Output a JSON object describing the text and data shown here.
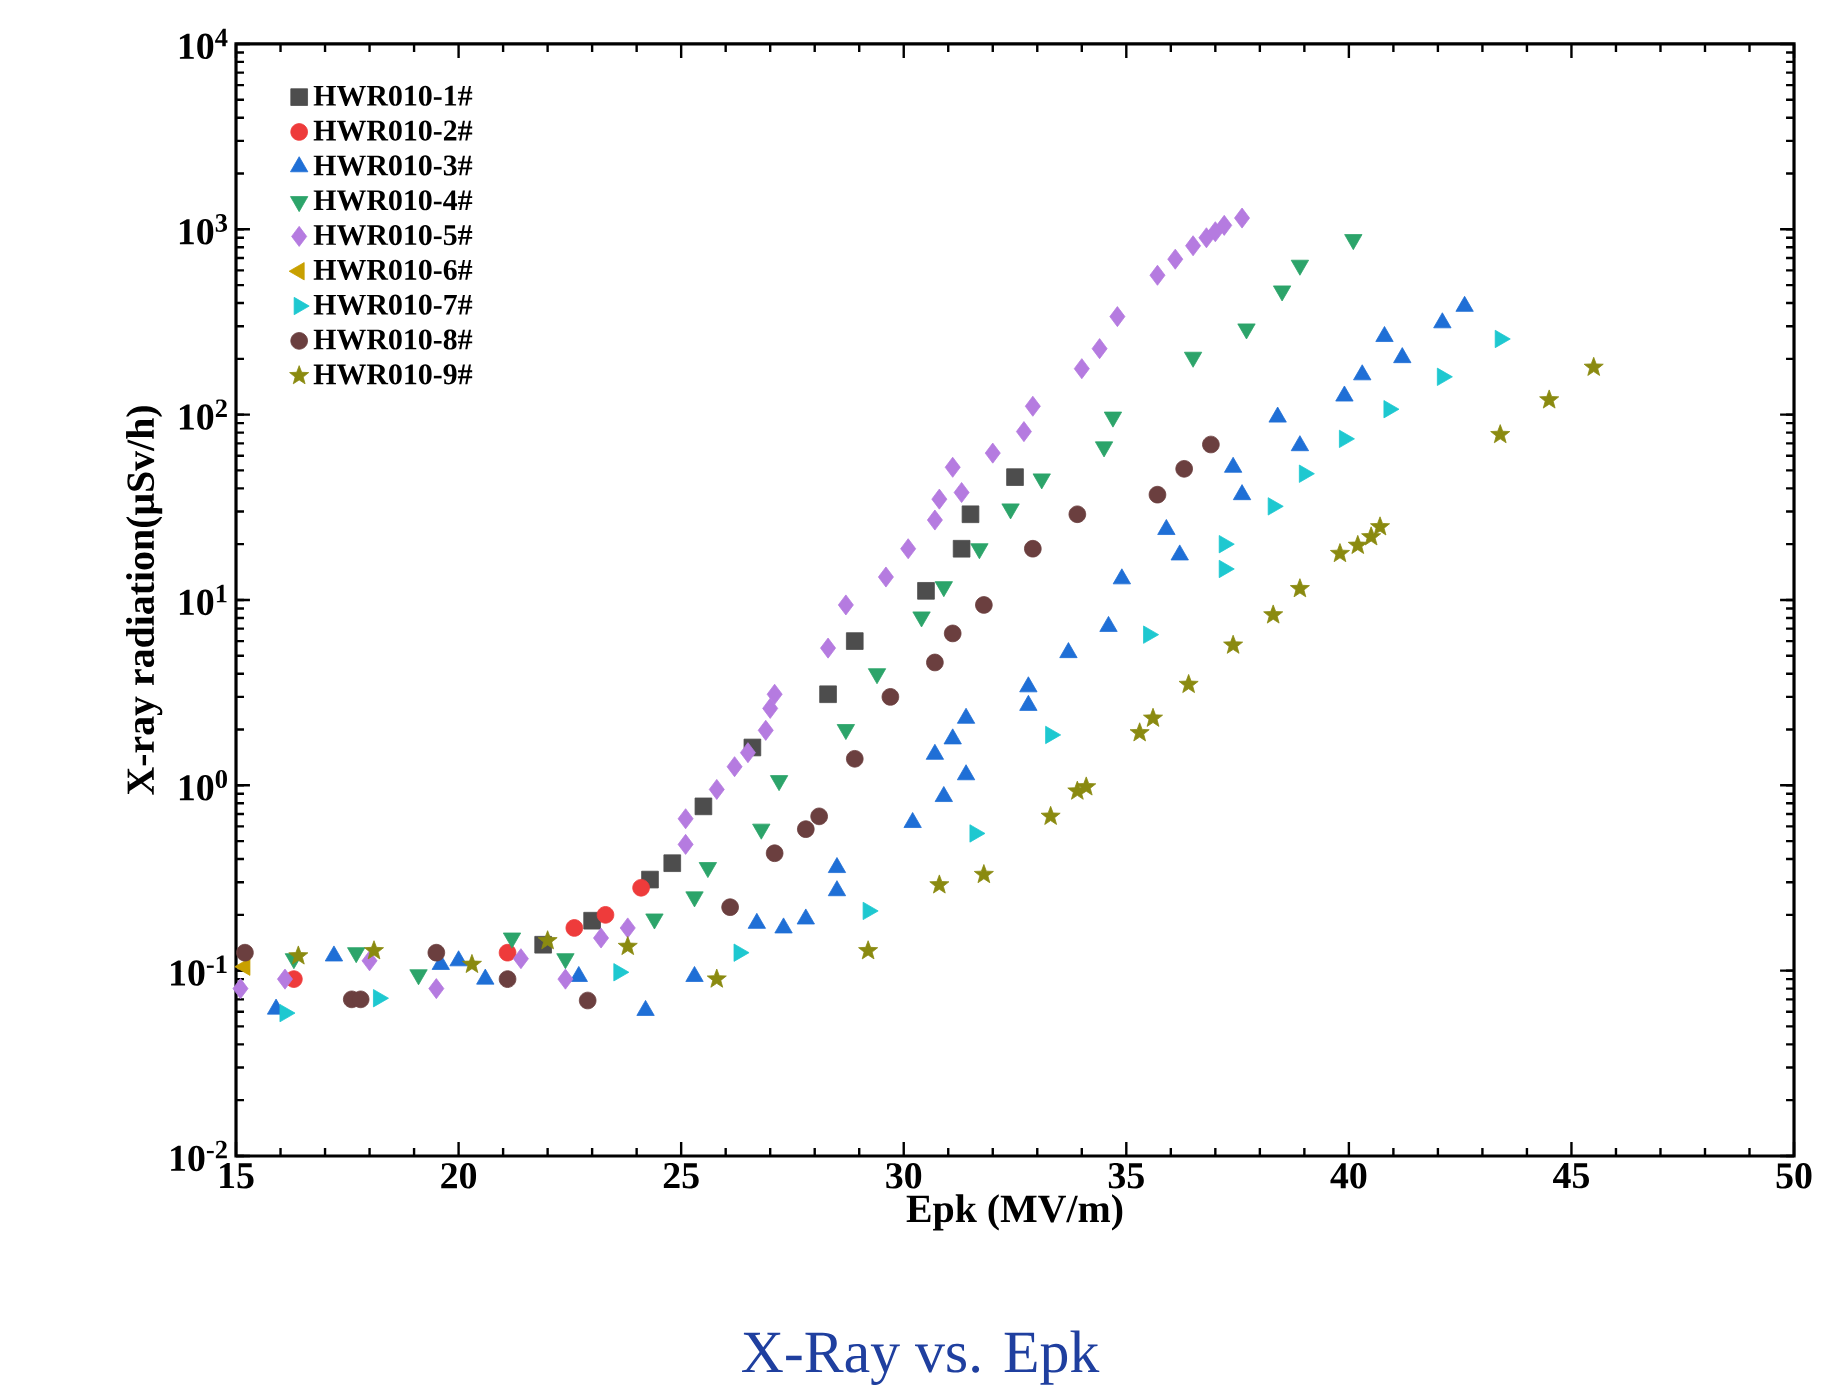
{
  "chart_data": {
    "type": "scatter",
    "xlabel": "Epk (MV/m)",
    "ylabel": "X-ray radiation(μSv/h)",
    "log": "y",
    "xlim": [
      15,
      50
    ],
    "xticks": [
      15,
      20,
      25,
      30,
      35,
      40,
      45,
      50
    ],
    "ylim": [
      0.01,
      10000
    ],
    "yticks": [
      {
        "value": 0.01,
        "label": "10$^{-2}$"
      },
      {
        "value": 0.1,
        "label": "10$^{-1}$"
      },
      {
        "value": 1,
        "label": "10$^{0}$"
      },
      {
        "value": 10,
        "label": "10$^{1}$"
      },
      {
        "value": 100,
        "label": "10$^{2}$"
      },
      {
        "value": 1000,
        "label": "10$^{3}$"
      },
      {
        "value": 10000,
        "label": "10$^{4}$"
      }
    ],
    "legend": "top left",
    "annotations": [
      "X-Ray vs. Epk"
    ],
    "series": [
      {
        "name": "HWR010-1#",
        "color": "#4d4d4d",
        "marker": "square",
        "x": [
          21.9,
          23.0,
          24.3,
          24.8,
          25.5,
          26.6,
          28.3,
          28.9,
          30.5,
          31.3,
          31.5,
          32.5
        ],
        "values": [
          0.138,
          0.186,
          0.31,
          0.38,
          0.77,
          1.6,
          3.1,
          6.0,
          11.2,
          18.9,
          29,
          46
        ]
      },
      {
        "name": "HWR010-2#",
        "color": "#ee3b3b",
        "marker": "circle",
        "x": [
          16.3,
          21.1,
          22.6,
          23.3,
          24.1
        ],
        "values": [
          0.09,
          0.125,
          0.17,
          0.2,
          0.28
        ]
      },
      {
        "name": "HWR010-3#",
        "color": "#1f6fd6",
        "marker": "triangle",
        "x": [
          15.9,
          17.2,
          19.6,
          20.0,
          20.6,
          22.7,
          24.2,
          25.3,
          26.7,
          27.3,
          27.8,
          28.5,
          28.5,
          30.2,
          30.9,
          31.4,
          30.7,
          31.1,
          31.4,
          32.8,
          32.8,
          33.7,
          34.6,
          34.9,
          35.9,
          36.2,
          37.4,
          37.6,
          38.4,
          38.9,
          39.9,
          40.3,
          40.8,
          41.2,
          42.1,
          42.6
        ],
        "values": [
          0.062,
          0.12,
          0.108,
          0.113,
          0.09,
          0.093,
          0.061,
          0.093,
          0.18,
          0.17,
          0.19,
          0.27,
          0.36,
          0.63,
          0.87,
          1.14,
          1.47,
          1.78,
          2.3,
          2.7,
          3.4,
          5.2,
          7.2,
          13,
          24,
          17.5,
          52,
          37,
          97,
          68,
          126,
          164,
          264,
          203,
          313,
          384
        ]
      },
      {
        "name": "HWR010-4#",
        "color": "#2ca46a",
        "marker": "triangle-down",
        "x": [
          16.3,
          17.7,
          19.1,
          21.2,
          22.4,
          24.4,
          25.3,
          25.6,
          26.8,
          27.2,
          28.7,
          29.4,
          30.4,
          30.9,
          31.7,
          32.4,
          33.1,
          34.5,
          34.7,
          36.5,
          37.7,
          38.5,
          38.9,
          40.1
        ],
        "values": [
          0.116,
          0.125,
          0.095,
          0.15,
          0.116,
          0.19,
          0.25,
          0.36,
          0.58,
          1.06,
          2.0,
          4.0,
          8.1,
          11.8,
          18.9,
          31,
          45,
          67,
          97,
          204,
          290,
          465,
          640,
          880
        ]
      },
      {
        "name": "HWR010-5#",
        "color": "#b57be0",
        "marker": "diamond",
        "x": [
          15.1,
          16.1,
          18.0,
          19.5,
          21.4,
          22.4,
          23.2,
          23.8,
          25.1,
          25.1,
          25.8,
          26.2,
          26.5,
          26.9,
          27.0,
          27.1,
          28.3,
          28.7,
          29.6,
          30.1,
          30.7,
          30.8,
          31.3,
          31.1,
          32.0,
          32.7,
          32.9,
          34.0,
          34.4,
          34.8,
          35.7,
          36.1,
          36.5,
          36.8,
          37.0,
          37.2,
          37.6
        ],
        "values": [
          0.08,
          0.09,
          0.113,
          0.08,
          0.116,
          0.09,
          0.15,
          0.17,
          0.48,
          0.66,
          0.95,
          1.26,
          1.5,
          1.98,
          2.6,
          3.1,
          5.5,
          9.4,
          13.3,
          18.9,
          27,
          35,
          38,
          52,
          62,
          81,
          111,
          177,
          227,
          338,
          565,
          690,
          815,
          900,
          970,
          1050,
          1150
        ]
      },
      {
        "name": "HWR010-6#",
        "color": "#c8a000",
        "marker": "triangle-left",
        "x": [
          15.2
        ],
        "values": [
          0.105
        ]
      },
      {
        "name": "HWR010-7#",
        "color": "#1ec8d0",
        "marker": "triangle-right",
        "x": [
          16.1,
          18.2,
          23.6,
          26.3,
          29.2,
          31.6,
          33.3,
          35.5,
          37.2,
          37.2,
          38.3,
          39.0,
          39.9,
          40.9,
          42.1,
          43.4
        ],
        "values": [
          0.059,
          0.071,
          0.098,
          0.125,
          0.21,
          0.55,
          1.87,
          6.5,
          14.7,
          20,
          32,
          48,
          74,
          107,
          160,
          256
        ]
      },
      {
        "name": "HWR010-8#",
        "color": "#6b3f3f",
        "marker": "circle",
        "x": [
          15.2,
          17.6,
          17.8,
          19.5,
          21.1,
          22.9,
          26.1,
          27.1,
          27.8,
          28.1,
          28.9,
          29.7,
          30.7,
          31.1,
          31.8,
          32.9,
          33.9,
          35.7,
          36.3,
          36.9
        ],
        "values": [
          0.125,
          0.07,
          0.07,
          0.125,
          0.09,
          0.069,
          0.22,
          0.43,
          0.58,
          0.68,
          1.39,
          3.0,
          4.6,
          6.6,
          9.4,
          18.9,
          29,
          37,
          51,
          69
        ]
      },
      {
        "name": "HWR010-9#",
        "color": "#8a8a10",
        "marker": "star",
        "x": [
          16.4,
          18.1,
          20.3,
          22.0,
          23.8,
          25.8,
          29.2,
          30.8,
          31.8,
          33.3,
          33.9,
          34.1,
          35.3,
          35.6,
          36.4,
          37.4,
          38.3,
          38.9,
          39.8,
          40.2,
          40.5,
          40.7,
          43.4,
          44.5,
          45.5
        ],
        "values": [
          0.12,
          0.128,
          0.108,
          0.145,
          0.135,
          0.09,
          0.128,
          0.29,
          0.33,
          0.68,
          0.93,
          0.98,
          1.92,
          2.3,
          3.5,
          5.7,
          8.3,
          11.5,
          17.8,
          19.7,
          21.9,
          24.8,
          78,
          120,
          180
        ]
      }
    ]
  }
}
